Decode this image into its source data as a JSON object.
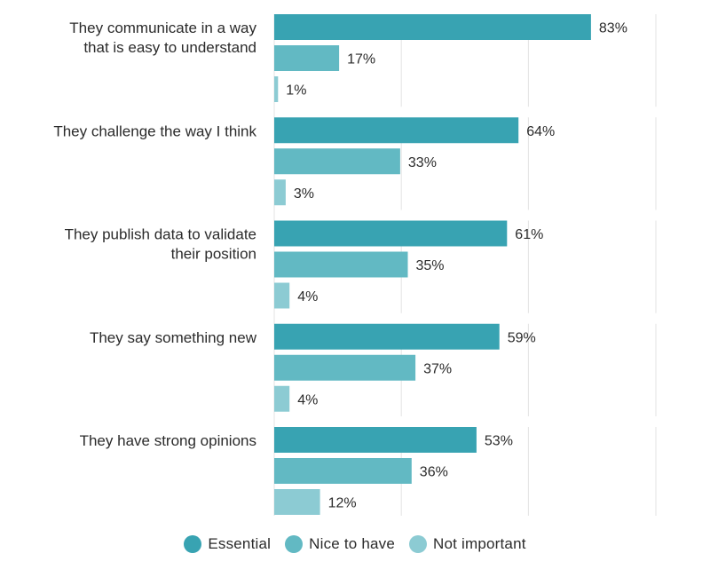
{
  "chart_data": {
    "type": "bar",
    "orientation": "horizontal",
    "categories": [
      "They communicate in a way that is easy to understand",
      "They challenge the way I think",
      "They publish data to validate their position",
      "They say something new",
      "They have strong opinions"
    ],
    "category_lines": [
      [
        "They communicate in a way",
        "that is easy to understand"
      ],
      [
        "They challenge the way I think"
      ],
      [
        "They publish data to validate",
        "their position"
      ],
      [
        "They say something new"
      ],
      [
        "They have strong opinions"
      ]
    ],
    "series": [
      {
        "name": "Essential",
        "values": [
          83,
          64,
          61,
          59,
          53
        ],
        "labels": [
          "83%",
          "64%",
          "61%",
          "59%",
          "53%"
        ],
        "color": "#38a3b2"
      },
      {
        "name": "Nice to have",
        "values": [
          17,
          33,
          35,
          37,
          36
        ],
        "labels": [
          "17%",
          "33%",
          "35%",
          "37%",
          "36%"
        ],
        "color": "#62b9c3"
      },
      {
        "name": "Not important",
        "values": [
          1,
          3,
          4,
          4,
          12
        ],
        "labels": [
          "1%",
          "3%",
          "4%",
          "4%",
          "12%"
        ],
        "color": "#8ccbd3"
      }
    ],
    "xlim": [
      0,
      100
    ],
    "value_suffix": "%",
    "grid": true,
    "legend_position": "bottom"
  }
}
